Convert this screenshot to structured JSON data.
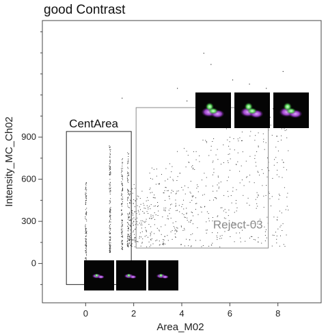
{
  "chart_data": {
    "type": "scatter",
    "title": "good Contrast",
    "xlabel": "Area_M02",
    "ylabel": "Intensity_MC_Ch02",
    "xlim": [
      -1.8,
      9.8
    ],
    "ylim": [
      -280,
      1730
    ],
    "x_ticks": [
      0,
      2,
      4,
      6,
      8
    ],
    "y_ticks": [
      0,
      300,
      600,
      900
    ],
    "grid": false,
    "gates": [
      {
        "name": "CentArea",
        "x": [
          -0.8,
          1.9
        ],
        "y": [
          -150,
          940
        ],
        "color": "#222222"
      },
      {
        "name": "Reject-03",
        "x": [
          2.1,
          7.6
        ],
        "y": [
          110,
          1110
        ],
        "color": "#8a8a8a"
      }
    ],
    "clusters": [
      {
        "x": 0,
        "y_range": [
          0,
          580
        ],
        "count": 120
      },
      {
        "x": 1,
        "y_range": [
          80,
          850
        ],
        "count": 150
      },
      {
        "x": 1.5,
        "y_range": [
          100,
          750
        ],
        "count": 110
      },
      {
        "x": 1.75,
        "y_range": [
          120,
          820
        ],
        "count": 90
      },
      {
        "x_range": [
          1.8,
          8.5
        ],
        "y_range": [
          120,
          1200
        ],
        "count": 700
      }
    ],
    "thumbnails": {
      "centarea": [
        "cell-image-1",
        "cell-image-2",
        "cell-image-3"
      ],
      "reject": [
        "cell-image-4",
        "cell-image-5",
        "cell-image-6"
      ]
    }
  }
}
